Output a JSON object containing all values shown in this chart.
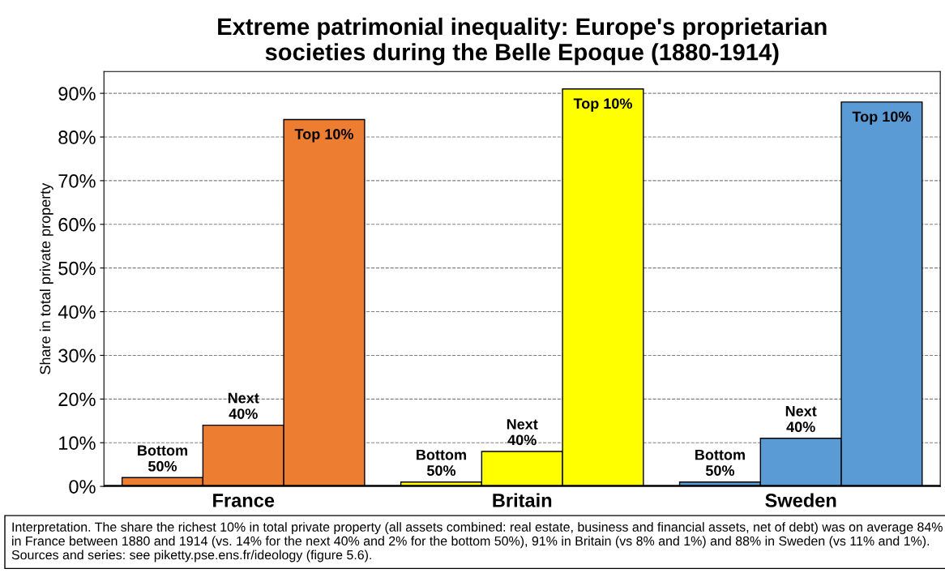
{
  "chart_data": {
    "type": "bar",
    "title": "Extreme patrimonial inequality: Europe's proprietarian\nsocieties during the Belle Epoque (1880-1914)",
    "ylabel": "Share in total private property",
    "categories": [
      "France",
      "Britain",
      "Sweden"
    ],
    "series": [
      {
        "name": "Bottom\n50%",
        "colors": [
          "#ed7d31",
          "#ffff00",
          "#5b9bd5"
        ],
        "values": [
          2,
          1,
          1
        ]
      },
      {
        "name": "Next\n40%",
        "colors": [
          "#ed7d31",
          "#ffff00",
          "#5b9bd5"
        ],
        "values": [
          14,
          8,
          11
        ]
      },
      {
        "name": "Top 10%",
        "colors": [
          "#ed7d31",
          "#ffff00",
          "#5b9bd5"
        ],
        "values": [
          84,
          91,
          88
        ]
      }
    ],
    "ylim": [
      0,
      95
    ],
    "yticks": [
      {
        "value": 0,
        "label": "0%"
      },
      {
        "value": 10,
        "label": "10%"
      },
      {
        "value": 20,
        "label": "20%"
      },
      {
        "value": 30,
        "label": "30%"
      },
      {
        "value": 40,
        "label": "40%"
      },
      {
        "value": 50,
        "label": "50%"
      },
      {
        "value": 60,
        "label": "60%"
      },
      {
        "value": 70,
        "label": "70%"
      },
      {
        "value": 80,
        "label": "80%"
      },
      {
        "value": 90,
        "label": "90%"
      }
    ],
    "grid": "y",
    "annotations": [
      "Interpretation. The share the richest 10% in total private property (all assets combined: real estate, business and financial assets, net of debt) was on average 84% in France between 1880 and 1914 (vs. 14% for the next 40% and 2% for the bottom 50%), 91% in Britain (vs 8% and 1%) and 88% in Sweden (vs 11% and 1%). Sources and series: see piketty.pse.ens.fr/ideology (figure 5.6)."
    ]
  }
}
